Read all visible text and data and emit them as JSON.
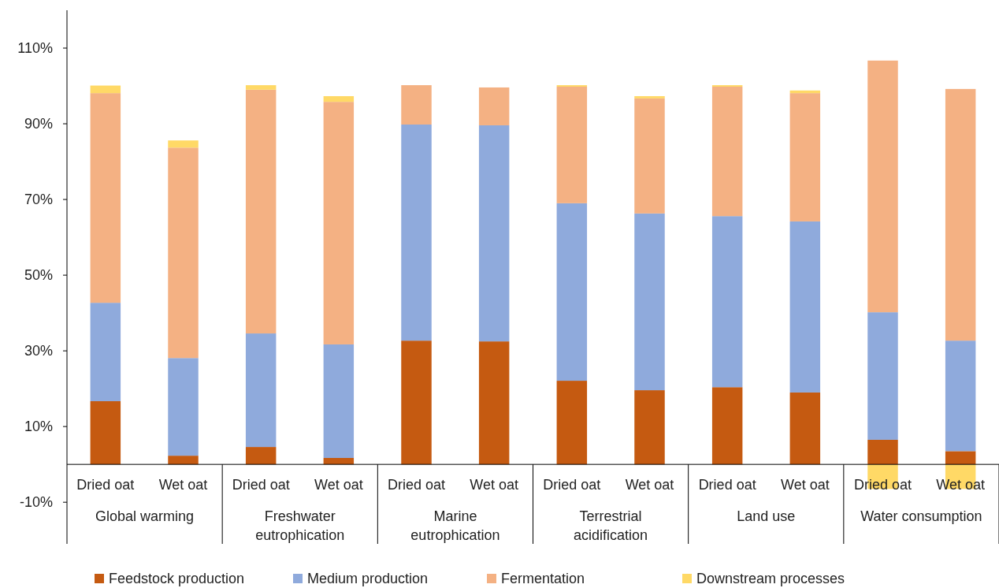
{
  "chart_data": {
    "type": "bar",
    "stacked": true,
    "legend": "bottom",
    "categories": [
      "Dried oat",
      "Wet oat",
      "Dried oat",
      "Wet oat",
      "Dried oat",
      "Wet oat",
      "Dried oat",
      "Wet oat",
      "Dried oat",
      "Wet oat",
      "Dried oat",
      "Wet oat"
    ],
    "annotations": [
      "Global warming",
      "Freshwater eutrophication",
      "Marine eutrophication",
      "Terrestrial acidification",
      "Land use",
      "Water consumption"
    ],
    "ylim": [
      -21,
      120
    ],
    "yticks": [
      {
        "value": -10,
        "label": "-10%"
      },
      {
        "value": 10,
        "label": "10%"
      },
      {
        "value": 30,
        "label": "30%"
      },
      {
        "value": 50,
        "label": "50%"
      },
      {
        "value": 70,
        "label": "70%"
      },
      {
        "value": 90,
        "label": "90%"
      },
      {
        "value": 110,
        "label": "110%"
      }
    ],
    "series": [
      {
        "name": "Feedstock production",
        "color": "#c55a11",
        "values": [
          16.7,
          2.3,
          4.6,
          1.7,
          32.7,
          32.5,
          22.1,
          19.6,
          20.4,
          19.0,
          6.5,
          3.5
        ]
      },
      {
        "name": "Medium production",
        "color": "#8faadc",
        "values": [
          26.0,
          25.8,
          30.0,
          30.0,
          57.1,
          57.1,
          46.9,
          46.7,
          45.2,
          45.2,
          33.7,
          29.2
        ]
      },
      {
        "name": "Fermentation",
        "color": "#f4b183",
        "values": [
          55.4,
          55.6,
          64.4,
          64.1,
          10.4,
          10.0,
          30.8,
          30.4,
          34.2,
          33.9,
          66.5,
          66.5
        ]
      },
      {
        "name": "Downstream processes",
        "color": "#ffd966",
        "values": [
          2.0,
          1.9,
          1.2,
          1.5,
          0,
          0,
          0.4,
          0.6,
          0.4,
          0.7,
          -6.5,
          -6.5
        ]
      }
    ]
  }
}
